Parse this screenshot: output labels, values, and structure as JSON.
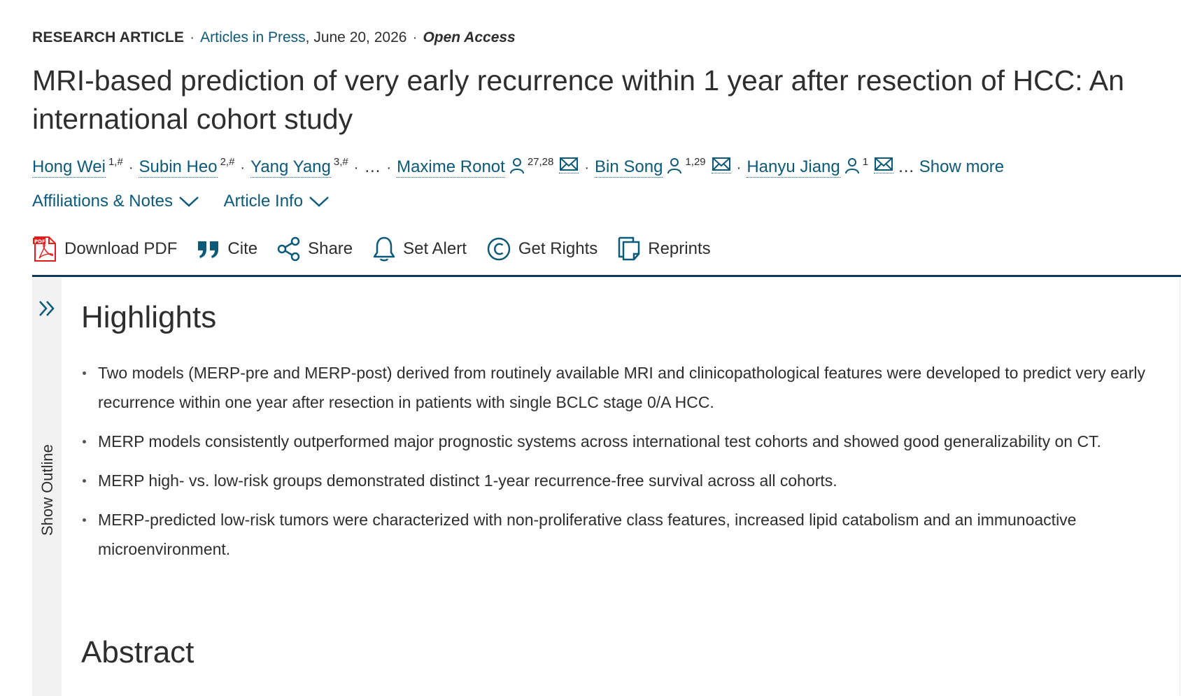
{
  "meta": {
    "article_type": "RESEARCH ARTICLE",
    "journal_section": "Articles in Press",
    "date": ", June 20, 2026",
    "access": "Open Access"
  },
  "title": "MRI-based prediction of very early recurrence within 1 year after resection of HCC: An international cohort study",
  "authors": [
    {
      "name": "Hong Wei",
      "sup": "1,#"
    },
    {
      "name": "Subin Heo",
      "sup": "2,#"
    },
    {
      "name": "Yang Yang",
      "sup": "3,#"
    },
    {
      "name": "Maxime Ronot",
      "sup": "27,28"
    },
    {
      "name": "Bin Song",
      "sup": "1,29"
    },
    {
      "name": "Hanyu Jiang",
      "sup": "1"
    }
  ],
  "authors_gap": "…",
  "authors_ellipsis": "…",
  "show_more_label": "Show more",
  "toggles": {
    "affiliations_label": "Affiliations & Notes",
    "article_info_label": "Article Info"
  },
  "toolbar": {
    "download_pdf_label": "Download PDF",
    "cite_label": "Cite",
    "share_label": "Share",
    "set_alert_label": "Set Alert",
    "get_rights_label": "Get Rights",
    "reprints_label": "Reprints"
  },
  "outline": {
    "label": "Show Outline"
  },
  "highlights": {
    "heading": "Highlights",
    "items": [
      "Two models (MERP-pre and MERP-post) derived from routinely available MRI and clinicopathological features were developed to predict very early recurrence within one year after resection in patients with single BCLC stage 0/A HCC.",
      "MERP models consistently outperformed major prognostic systems across international test cohorts and showed good generalizability on CT.",
      "MERP high- vs. low-risk groups demonstrated distinct 1-year recurrence-free survival across all cohorts.",
      "MERP-predicted low-risk tumors were characterized with non-proliferative class features, increased lipid catabolism and an immunoactive microenvironment."
    ]
  },
  "abstract": {
    "heading": "Abstract"
  },
  "colors": {
    "link": "#0c5a78",
    "text": "#2e2e2e",
    "divider": "#0c3b5a",
    "rail": "#f2f2f2",
    "pdf_red": "#e21b1b"
  }
}
